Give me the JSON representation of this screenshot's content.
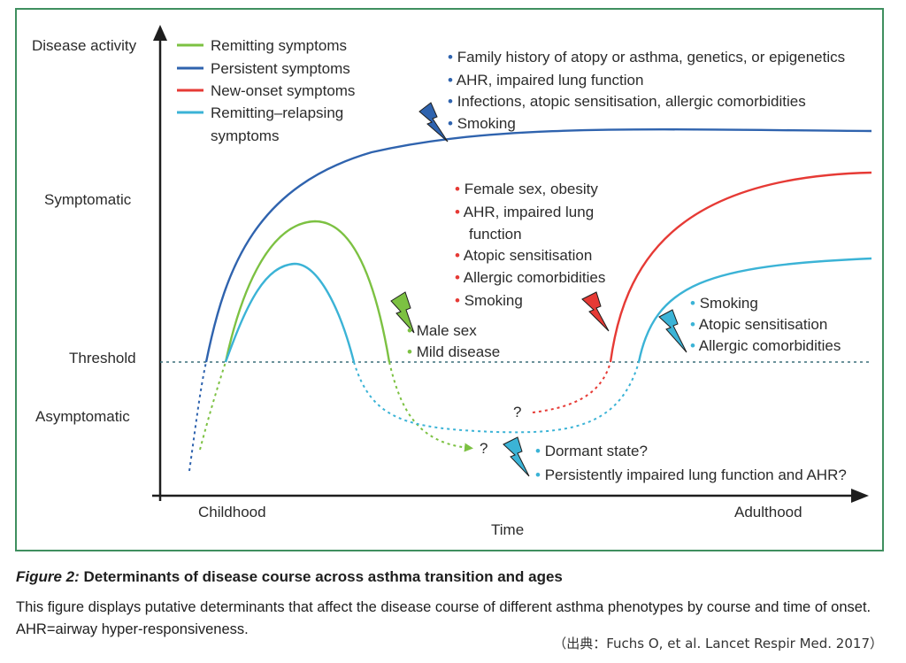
{
  "axes": {
    "y_levels": [
      "Disease activity",
      "Symptomatic",
      "Threshold",
      "Asymptomatic"
    ],
    "x_ticks": [
      "Childhood",
      "Adulthood"
    ],
    "x_title": "Time"
  },
  "legend": [
    {
      "label": "Remitting symptoms",
      "color": "#7cc142"
    },
    {
      "label": "Persistent symptoms",
      "color": "#2f63ae"
    },
    {
      "label": "New-onset symptoms",
      "color": "#e63a35"
    },
    {
      "label": "Remitting–relapsing",
      "label2": "symptoms",
      "color": "#3bb3d6"
    }
  ],
  "annotations": {
    "persistent": [
      "Family history of atopy or asthma, genetics, or epigenetics",
      "AHR, impaired lung function",
      "Infections, atopic sensitisation, allergic comorbidities",
      "Smoking"
    ],
    "new_onset": [
      "Female sex, obesity",
      "AHR, impaired lung",
      "function",
      "Atopic sensitisation",
      "Allergic comorbidities",
      "Smoking"
    ],
    "relapsing": [
      "Smoking",
      "Atopic sensitisation",
      "Allergic comorbidities"
    ],
    "remitting": [
      "Male sex",
      "Mild disease"
    ],
    "dormant": [
      "Dormant state?",
      "Persistently impaired lung function and AHR?"
    ],
    "question_mark": "?"
  },
  "colors": {
    "green": "#7cc142",
    "blue": "#2f63ae",
    "red": "#e63a35",
    "cyan": "#3bb3d6",
    "frame": "#3f8f5f"
  },
  "caption": {
    "label": "Figure 2:",
    "title": "Determinants of disease course across asthma transition and ages",
    "body": "This figure displays putative determinants that affect the disease course of different asthma phenotypes by course and time of onset. AHR=airway hyper-responsiveness."
  },
  "source_note": "（出典：Fuchs O, et al. Lancet Respir Med. 2017）"
}
